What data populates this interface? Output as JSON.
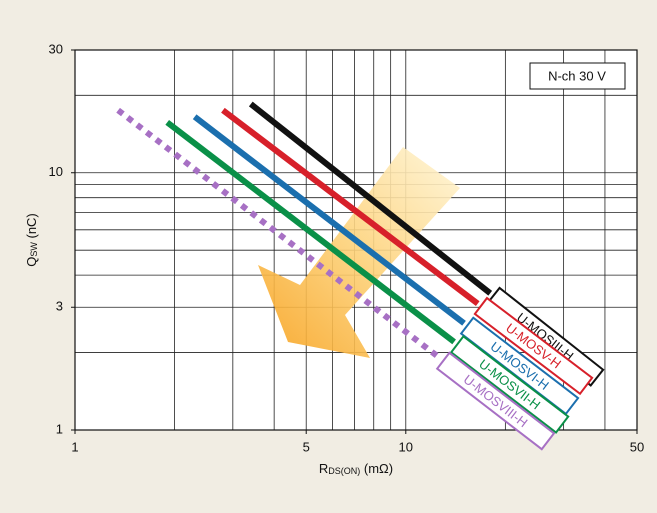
{
  "chart_data": {
    "type": "line",
    "xlabel": {
      "main": "R",
      "sub": "DS(ON)",
      "rest": " (mΩ)"
    },
    "ylabel": {
      "main": "Q",
      "sub": "SW",
      "rest": " (nC)"
    },
    "annotation": "N-ch 30 V",
    "log_x": true,
    "log_y": true,
    "xlim": [
      1,
      50
    ],
    "ylim": [
      1,
      30
    ],
    "xticks": [
      1,
      5,
      10,
      50
    ],
    "yticks": [
      1,
      3,
      10,
      30
    ],
    "xgrid": [
      2,
      3,
      4,
      5,
      6,
      7,
      8,
      9,
      10,
      20,
      30,
      40
    ],
    "ygrid": [
      2,
      3,
      4,
      5,
      6,
      7,
      8,
      9,
      10,
      20
    ],
    "grid": true,
    "series": [
      {
        "name": "U-MOSIII-H",
        "color": "#111111",
        "line_style": "solid",
        "x": [
          3.4,
          18
        ],
        "values": [
          18.5,
          3.4
        ]
      },
      {
        "name": "U-MOSV-H",
        "color": "#d7202a",
        "line_style": "solid",
        "x": [
          2.8,
          16.5
        ],
        "values": [
          17.5,
          3.1
        ]
      },
      {
        "name": "U-MOSVI-H",
        "color": "#1b6fae",
        "line_style": "solid",
        "x": [
          2.3,
          15
        ],
        "values": [
          16.5,
          2.6
        ]
      },
      {
        "name": "U-MOSVII-H",
        "color": "#0a9048",
        "line_style": "solid",
        "x": [
          1.9,
          14
        ],
        "values": [
          15.7,
          2.2
        ]
      },
      {
        "name": "U-MOSVIII-H",
        "color": "#a770c4",
        "line_style": "dotted",
        "x": [
          1.35,
          12.7
        ],
        "values": [
          17.5,
          1.9
        ]
      }
    ]
  }
}
